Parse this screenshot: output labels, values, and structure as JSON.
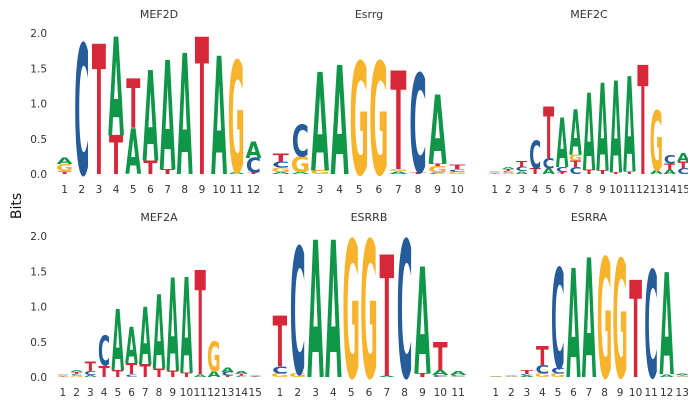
{
  "figure": {
    "ylabel": "Bits",
    "colors": {
      "A": "#109648",
      "C": "#255C99",
      "G": "#F7B32B",
      "T": "#D62839"
    }
  },
  "chart_data": [
    {
      "type": "logo",
      "title": "MEF2D",
      "ylim": [
        0,
        2.0
      ],
      "yticks": [
        "0.0",
        "0.5",
        "1.0",
        "1.5",
        "2.0"
      ],
      "positions": [
        "1",
        "2",
        "3",
        "4",
        "5",
        "6",
        "7",
        "8",
        "9",
        "10",
        "11",
        "12"
      ],
      "columns": [
        [
          [
            "T",
            0.04
          ],
          [
            "G",
            0.1
          ],
          [
            "A",
            0.09
          ]
        ],
        [
          [
            "C",
            1.85
          ]
        ],
        [
          [
            "T",
            1.85
          ]
        ],
        [
          [
            "T",
            0.55
          ],
          [
            "A",
            1.4
          ]
        ],
        [
          [
            "A",
            0.65
          ],
          [
            "T",
            0.7
          ]
        ],
        [
          [
            "T",
            0.19
          ],
          [
            "A",
            1.28
          ]
        ],
        [
          [
            "T",
            0.07
          ],
          [
            "A",
            1.55
          ]
        ],
        [
          [
            "A",
            1.72
          ]
        ],
        [
          [
            "T",
            1.95
          ]
        ],
        [
          [
            "A",
            1.68
          ]
        ],
        [
          [
            "A",
            0.03
          ],
          [
            "G",
            1.58
          ]
        ],
        [
          [
            "T",
            0.02
          ],
          [
            "C",
            0.21
          ],
          [
            "A",
            0.23
          ]
        ]
      ]
    },
    {
      "type": "logo",
      "title": "Esrrg",
      "ylim": [
        0,
        2.0
      ],
      "yticks": [
        "0.0",
        "0.5",
        "1.0",
        "1.5",
        "2.0"
      ],
      "positions": [
        "1",
        "2",
        "3",
        "4",
        "5",
        "6",
        "7",
        "8",
        "9",
        "10"
      ],
      "columns": [
        [
          [
            "A",
            0.03
          ],
          [
            "G",
            0.06
          ],
          [
            "C",
            0.08
          ],
          [
            "T",
            0.12
          ]
        ],
        [
          [
            "A",
            0.03
          ],
          [
            "G",
            0.22
          ],
          [
            "C",
            0.45
          ]
        ],
        [
          [
            "G",
            0.05
          ],
          [
            "A",
            1.4
          ]
        ],
        [
          [
            "A",
            1.55
          ]
        ],
        [
          [
            "G",
            1.6
          ]
        ],
        [
          [
            "G",
            1.6
          ]
        ],
        [
          [
            "A",
            0.04
          ],
          [
            "G",
            0.03
          ],
          [
            "T",
            1.4
          ]
        ],
        [
          [
            "T",
            0.03
          ],
          [
            "C",
            1.4
          ]
        ],
        [
          [
            "C",
            0.02
          ],
          [
            "G",
            0.09
          ],
          [
            "T",
            0.04
          ],
          [
            "A",
            0.98
          ]
        ],
        [
          [
            "G",
            0.03
          ],
          [
            "C",
            0.04
          ],
          [
            "T",
            0.06
          ]
        ]
      ]
    },
    {
      "type": "logo",
      "title": "MEF2C",
      "ylim": [
        0,
        2.0
      ],
      "yticks": [
        "0.0",
        "0.5",
        "1.0",
        "1.5",
        "2.0"
      ],
      "positions": [
        "1",
        "2",
        "3",
        "4",
        "5",
        "6",
        "7",
        "8",
        "9",
        "10",
        "11",
        "12",
        "13",
        "14",
        "15"
      ],
      "columns": [
        [
          [
            "G",
            0.01
          ],
          [
            "T",
            0.01
          ],
          [
            "C",
            0.01
          ],
          [
            "A",
            0.01
          ]
        ],
        [
          [
            "G",
            0.02
          ],
          [
            "C",
            0.02
          ],
          [
            "T",
            0.03
          ],
          [
            "A",
            0.03
          ]
        ],
        [
          [
            "A",
            0.04
          ],
          [
            "C",
            0.06
          ],
          [
            "T",
            0.08
          ]
        ],
        [
          [
            "T",
            0.08
          ],
          [
            "C",
            0.4
          ]
        ],
        [
          [
            "A",
            0.08
          ],
          [
            "C",
            0.15
          ],
          [
            "T",
            0.73
          ]
        ],
        [
          [
            "T",
            0.03
          ],
          [
            "C",
            0.07
          ],
          [
            "A",
            0.7
          ]
        ],
        [
          [
            "C",
            0.1
          ],
          [
            "T",
            0.09
          ],
          [
            "G",
            0.08
          ],
          [
            "A",
            0.65
          ]
        ],
        [
          [
            "T",
            0.06
          ],
          [
            "A",
            1.1
          ]
        ],
        [
          [
            "T",
            0.05
          ],
          [
            "A",
            1.25
          ]
        ],
        [
          [
            "T",
            0.03
          ],
          [
            "A",
            1.3
          ]
        ],
        [
          [
            "T",
            0.04
          ],
          [
            "A",
            1.35
          ]
        ],
        [
          [
            "T",
            1.55
          ]
        ],
        [
          [
            "A",
            0.05
          ],
          [
            "G",
            0.85
          ]
        ],
        [
          [
            "A",
            0.06
          ],
          [
            "T",
            0.09
          ],
          [
            "C",
            0.12
          ]
        ],
        [
          [
            "C",
            0.08
          ],
          [
            "T",
            0.1
          ],
          [
            "A",
            0.12
          ]
        ]
      ]
    },
    {
      "type": "logo",
      "title": "MEF2A",
      "ylim": [
        0,
        2.0
      ],
      "yticks": [
        "0.0",
        "0.5",
        "1.0",
        "1.5",
        "2.0"
      ],
      "positions": [
        "1",
        "2",
        "3",
        "4",
        "5",
        "6",
        "7",
        "8",
        "9",
        "10",
        "11",
        "12",
        "13",
        "14",
        "15"
      ],
      "columns": [
        [
          [
            "G",
            0.01
          ],
          [
            "T",
            0.01
          ],
          [
            "C",
            0.01
          ],
          [
            "A",
            0.01
          ]
        ],
        [
          [
            "G",
            0.02
          ],
          [
            "C",
            0.02
          ],
          [
            "T",
            0.03
          ],
          [
            "A",
            0.03
          ]
        ],
        [
          [
            "A",
            0.03
          ],
          [
            "C",
            0.05
          ],
          [
            "T",
            0.14
          ]
        ],
        [
          [
            "T",
            0.16
          ],
          [
            "C",
            0.42
          ]
        ],
        [
          [
            "T",
            0.1
          ],
          [
            "A",
            0.87
          ]
        ],
        [
          [
            "C",
            0.04
          ],
          [
            "T",
            0.16
          ],
          [
            "A",
            0.52
          ]
        ],
        [
          [
            "T",
            0.18
          ],
          [
            "A",
            0.82
          ]
        ],
        [
          [
            "T",
            0.12
          ],
          [
            "A",
            1.05
          ]
        ],
        [
          [
            "T",
            0.09
          ],
          [
            "A",
            1.32
          ]
        ],
        [
          [
            "T",
            0.06
          ],
          [
            "A",
            1.36
          ]
        ],
        [
          [
            "A",
            0.04
          ],
          [
            "T",
            1.48
          ]
        ],
        [
          [
            "A",
            0.08
          ],
          [
            "G",
            0.42
          ]
        ],
        [
          [
            "T",
            0.02
          ],
          [
            "C",
            0.05
          ],
          [
            "A",
            0.06
          ]
        ],
        [
          [
            "C",
            0.02
          ],
          [
            "T",
            0.03
          ],
          [
            "A",
            0.04
          ]
        ],
        [
          [
            "C",
            0.01
          ],
          [
            "T",
            0.01
          ],
          [
            "A",
            0.01
          ]
        ]
      ]
    },
    {
      "type": "logo",
      "title": "ESRRB",
      "ylim": [
        0,
        2.0
      ],
      "yticks": [
        "0.0",
        "0.5",
        "1.0",
        "1.5",
        "2.0"
      ],
      "positions": [
        "1",
        "2",
        "3",
        "4",
        "5",
        "6",
        "7",
        "8",
        "9",
        "10",
        "11"
      ],
      "columns": [
        [
          [
            "G",
            0.05
          ],
          [
            "C",
            0.1
          ],
          [
            "T",
            0.72
          ]
        ],
        [
          [
            "G",
            0.05
          ],
          [
            "C",
            1.8
          ]
        ],
        [
          [
            "A",
            1.95
          ]
        ],
        [
          [
            "A",
            1.95
          ]
        ],
        [
          [
            "G",
            1.95
          ]
        ],
        [
          [
            "G",
            1.95
          ]
        ],
        [
          [
            "A",
            0.02
          ],
          [
            "T",
            1.72
          ]
        ],
        [
          [
            "C",
            1.95
          ]
        ],
        [
          [
            "T",
            0.05
          ],
          [
            "A",
            1.52
          ]
        ],
        [
          [
            "C",
            0.03
          ],
          [
            "A",
            0.07
          ],
          [
            "T",
            0.4
          ]
        ],
        [
          [
            "G",
            0.01
          ],
          [
            "C",
            0.02
          ],
          [
            "A",
            0.05
          ]
        ]
      ]
    },
    {
      "type": "logo",
      "title": "ESRRA",
      "ylim": [
        0,
        2.0
      ],
      "yticks": [
        "0.0",
        "0.5",
        "1.0",
        "1.5",
        "2.0"
      ],
      "positions": [
        "1",
        "2",
        "3",
        "4",
        "5",
        "6",
        "7",
        "8",
        "9",
        "10",
        "11",
        "12",
        "13"
      ],
      "columns": [
        [
          [
            "G",
            0.01
          ],
          [
            "A",
            0.01
          ]
        ],
        [
          [
            "G",
            0.01
          ],
          [
            "C",
            0.01
          ],
          [
            "A",
            0.01
          ]
        ],
        [
          [
            "A",
            0.02
          ],
          [
            "C",
            0.02
          ],
          [
            "T",
            0.05
          ]
        ],
        [
          [
            "G",
            0.05
          ],
          [
            "C",
            0.12
          ],
          [
            "T",
            0.27
          ]
        ],
        [
          [
            "G",
            0.05
          ],
          [
            "C",
            0.08
          ],
          [
            "C",
            1.42
          ]
        ],
        [
          [
            "A",
            1.55
          ]
        ],
        [
          [
            "A",
            1.7
          ]
        ],
        [
          [
            "G",
            1.7
          ]
        ],
        [
          [
            "G",
            1.68
          ]
        ],
        [
          [
            "T",
            1.38
          ]
        ],
        [
          [
            "C",
            1.52
          ]
        ],
        [
          [
            "A",
            0.04
          ],
          [
            "A",
            1.45
          ]
        ],
        [
          [
            "G",
            0.01
          ],
          [
            "C",
            0.01
          ],
          [
            "T",
            0.01
          ],
          [
            "A",
            0.02
          ]
        ]
      ]
    }
  ]
}
